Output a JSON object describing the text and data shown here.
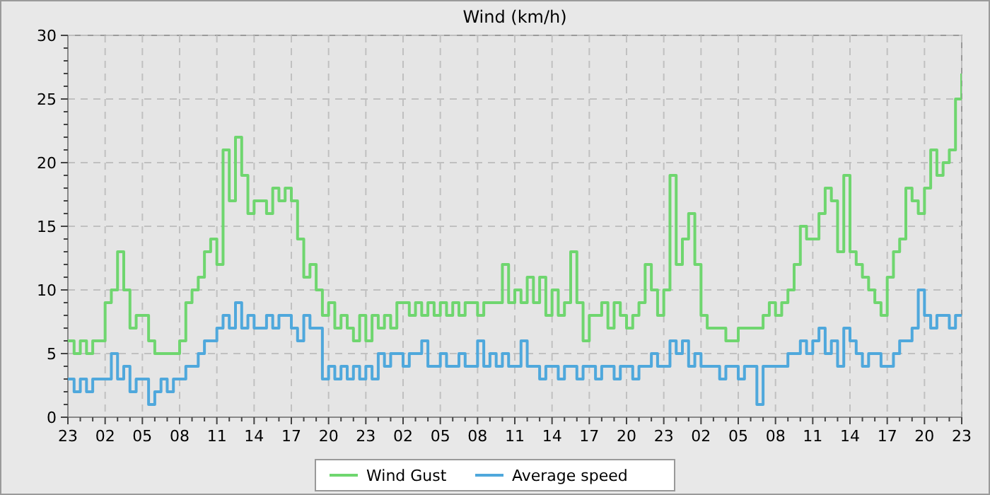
{
  "chart_data": {
    "type": "step",
    "title": "Wind (km/h)",
    "categories": [
      "23",
      null,
      null,
      null,
      null,
      null,
      "02",
      null,
      null,
      null,
      null,
      null,
      "05",
      null,
      null,
      null,
      null,
      null,
      "08",
      null,
      null,
      null,
      null,
      null,
      "11",
      null,
      null,
      null,
      null,
      null,
      "14",
      null,
      null,
      null,
      null,
      null,
      "17",
      null,
      null,
      null,
      null,
      null,
      "20",
      null,
      null,
      null,
      null,
      null,
      "23",
      null,
      null,
      null,
      null,
      null,
      "02",
      null,
      null,
      null,
      null,
      null,
      "05",
      null,
      null,
      null,
      null,
      null,
      "08",
      null,
      null,
      null,
      null,
      null,
      "11",
      null,
      null,
      null,
      null,
      null,
      "14",
      null,
      null,
      null,
      null,
      null,
      "17",
      null,
      null,
      null,
      null,
      null,
      "20",
      null,
      null,
      null,
      null,
      null,
      "23",
      null,
      null,
      null,
      null,
      null,
      "02",
      null,
      null,
      null,
      null,
      null,
      "05",
      null,
      null,
      null,
      null,
      null,
      "08",
      null,
      null,
      null,
      null,
      null,
      "11",
      null,
      null,
      null,
      null,
      null,
      "14",
      null,
      null,
      null,
      null,
      null,
      "17",
      null,
      null,
      null,
      null,
      null,
      "20",
      null,
      null,
      null,
      null,
      null,
      "23"
    ],
    "series": [
      {
        "name": "Wind Gust",
        "color": "#6fd66f",
        "values": [
          6,
          5,
          6,
          5,
          6,
          6,
          9,
          10,
          13,
          10,
          7,
          8,
          8,
          6,
          5,
          5,
          5,
          5,
          6,
          9,
          10,
          11,
          13,
          14,
          12,
          21,
          17,
          22,
          19,
          16,
          17,
          17,
          16,
          18,
          17,
          18,
          17,
          14,
          11,
          12,
          10,
          8,
          9,
          7,
          8,
          7,
          6,
          8,
          6,
          8,
          7,
          8,
          7,
          9,
          9,
          8,
          9,
          8,
          9,
          8,
          9,
          8,
          9,
          8,
          9,
          9,
          8,
          9,
          9,
          9,
          12,
          9,
          10,
          9,
          11,
          9,
          11,
          8,
          10,
          8,
          9,
          13,
          9,
          6,
          8,
          8,
          9,
          7,
          9,
          8,
          7,
          8,
          9,
          12,
          10,
          8,
          10,
          19,
          12,
          14,
          16,
          12,
          8,
          7,
          7,
          7,
          6,
          6,
          7,
          7,
          7,
          7,
          8,
          9,
          8,
          9,
          10,
          12,
          15,
          14,
          14,
          16,
          18,
          17,
          13,
          19,
          13,
          12,
          11,
          10,
          9,
          8,
          11,
          13,
          14,
          18,
          17,
          16,
          18,
          21,
          19,
          20,
          21,
          25,
          27
        ]
      },
      {
        "name": "Average speed",
        "color": "#4fa8dc",
        "values": [
          3,
          2,
          3,
          2,
          3,
          3,
          3,
          5,
          3,
          4,
          2,
          3,
          3,
          1,
          2,
          3,
          2,
          3,
          3,
          4,
          4,
          5,
          6,
          6,
          7,
          8,
          7,
          9,
          7,
          8,
          7,
          7,
          8,
          7,
          8,
          8,
          7,
          6,
          8,
          7,
          7,
          3,
          4,
          3,
          4,
          3,
          4,
          3,
          4,
          3,
          5,
          4,
          5,
          5,
          4,
          5,
          5,
          6,
          4,
          4,
          5,
          4,
          4,
          5,
          4,
          4,
          6,
          4,
          5,
          4,
          5,
          4,
          4,
          6,
          4,
          4,
          3,
          4,
          4,
          3,
          4,
          4,
          3,
          4,
          4,
          3,
          4,
          4,
          3,
          4,
          4,
          3,
          4,
          4,
          5,
          4,
          4,
          6,
          5,
          6,
          4,
          5,
          4,
          4,
          4,
          3,
          4,
          4,
          3,
          4,
          4,
          1,
          4,
          4,
          4,
          4,
          5,
          5,
          6,
          5,
          6,
          7,
          5,
          6,
          4,
          7,
          6,
          5,
          4,
          5,
          5,
          4,
          4,
          5,
          6,
          6,
          7,
          10,
          8,
          7,
          8,
          8,
          7,
          8,
          8
        ]
      }
    ],
    "ylim": [
      0,
      30
    ],
    "yticks": [
      0,
      {
        "value": 1,
        "label": null
      },
      {
        "value": 2,
        "label": null
      },
      {
        "value": 3,
        "label": null
      },
      {
        "value": 4,
        "label": null
      },
      5,
      {
        "value": 6,
        "label": null
      },
      {
        "value": 7,
        "label": null
      },
      {
        "value": 8,
        "label": null
      },
      {
        "value": 9,
        "label": null
      },
      10,
      {
        "value": 11,
        "label": null
      },
      {
        "value": 12,
        "label": null
      },
      {
        "value": 13,
        "label": null
      },
      {
        "value": 14,
        "label": null
      },
      15,
      {
        "value": 16,
        "label": null
      },
      {
        "value": 17,
        "label": null
      },
      {
        "value": 18,
        "label": null
      },
      {
        "value": 19,
        "label": null
      },
      20,
      {
        "value": 21,
        "label": null
      },
      {
        "value": 22,
        "label": null
      },
      {
        "value": 23,
        "label": null
      },
      {
        "value": 24,
        "label": null
      },
      25,
      {
        "value": 26,
        "label": null
      },
      {
        "value": 27,
        "label": null
      },
      {
        "value": 28,
        "label": null
      },
      {
        "value": 29,
        "label": null
      },
      30
    ],
    "grid": true,
    "legend": "bottom",
    "line_style": "solid",
    "marker": "none"
  }
}
